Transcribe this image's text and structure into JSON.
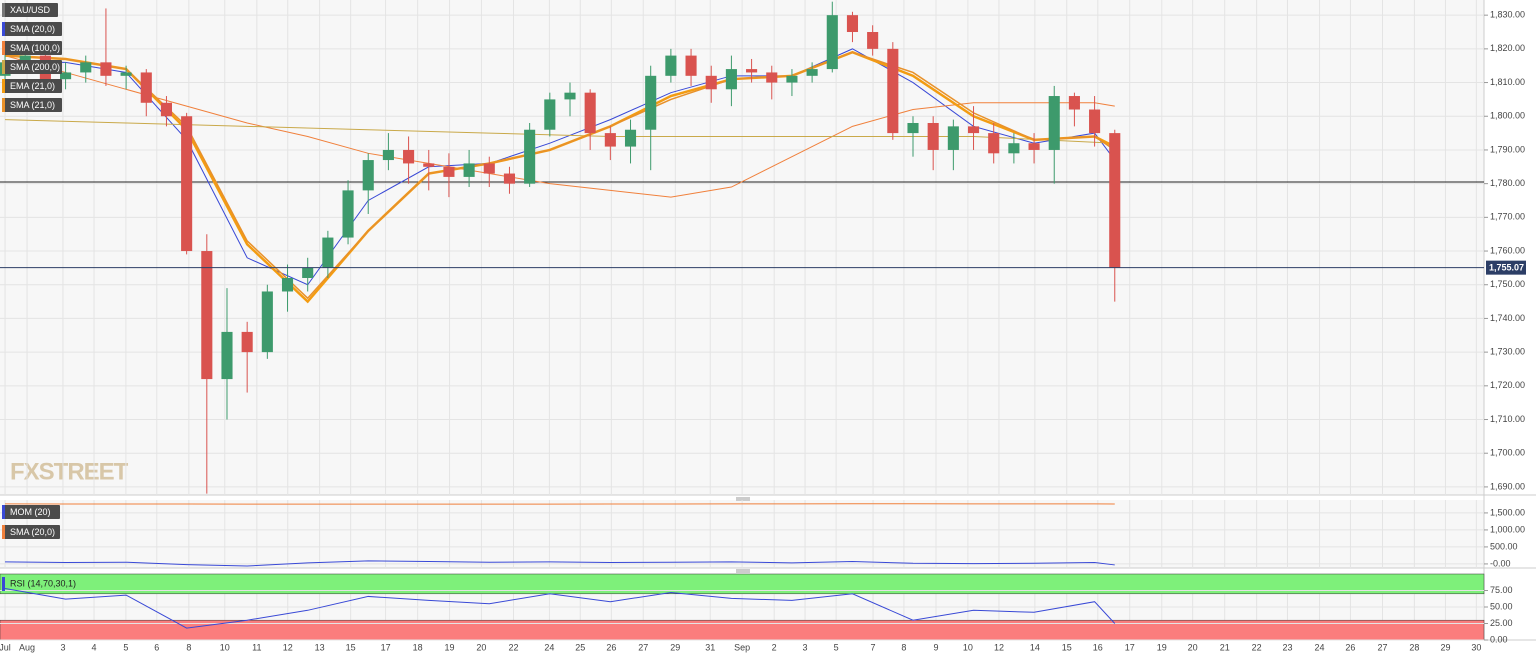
{
  "chart_data": [
    {
      "type": "candlestick",
      "name": "XAU/USD",
      "color": "#777777",
      "up_color": "#3d9a6c",
      "down_color": "#d9534f",
      "watermark": "FXSTREET",
      "ohlc": [
        [
          1812,
          1819,
          1810,
          1816
        ],
        [
          1816,
          1821,
          1813,
          1818
        ],
        [
          1818,
          1819,
          1808,
          1811
        ],
        [
          1811,
          1816,
          1808,
          1813
        ],
        [
          1813,
          1818,
          1810,
          1816
        ],
        [
          1816,
          1832,
          1809,
          1812
        ],
        [
          1812,
          1815,
          1808,
          1813
        ],
        [
          1813,
          1814,
          1800,
          1804
        ],
        [
          1804,
          1806,
          1797,
          1800
        ],
        [
          1800,
          1801,
          1759,
          1760
        ],
        [
          1760,
          1765,
          1688,
          1722
        ],
        [
          1722,
          1749,
          1710,
          1736
        ],
        [
          1736,
          1739,
          1718,
          1730
        ],
        [
          1730,
          1750,
          1728,
          1748
        ],
        [
          1748,
          1756,
          1742,
          1752
        ],
        [
          1752,
          1758,
          1748,
          1755
        ],
        [
          1755,
          1766,
          1752,
          1764
        ],
        [
          1764,
          1781,
          1762,
          1778
        ],
        [
          1778,
          1789,
          1771,
          1787
        ],
        [
          1787,
          1795,
          1784,
          1790
        ],
        [
          1790,
          1794,
          1780,
          1786
        ],
        [
          1786,
          1790,
          1778,
          1785
        ],
        [
          1785,
          1789,
          1776,
          1782
        ],
        [
          1782,
          1790,
          1779,
          1786
        ],
        [
          1786,
          1788,
          1779,
          1783
        ],
        [
          1783,
          1785,
          1777,
          1780
        ],
        [
          1780,
          1798,
          1779,
          1796
        ],
        [
          1796,
          1807,
          1794,
          1805
        ],
        [
          1805,
          1810,
          1800,
          1807
        ],
        [
          1807,
          1808,
          1790,
          1795
        ],
        [
          1795,
          1797,
          1787,
          1791
        ],
        [
          1791,
          1799,
          1786,
          1796
        ],
        [
          1796,
          1815,
          1784,
          1812
        ],
        [
          1812,
          1820,
          1810,
          1818
        ],
        [
          1818,
          1820,
          1809,
          1812
        ],
        [
          1812,
          1815,
          1804,
          1808
        ],
        [
          1808,
          1818,
          1803,
          1814
        ],
        [
          1814,
          1817,
          1810,
          1813
        ],
        [
          1813,
          1815,
          1805,
          1810
        ],
        [
          1810,
          1814,
          1806,
          1812
        ],
        [
          1812,
          1816,
          1810,
          1814
        ],
        [
          1814,
          1834,
          1813,
          1830
        ],
        [
          1830,
          1831,
          1822,
          1825
        ],
        [
          1825,
          1827,
          1818,
          1820
        ],
        [
          1820,
          1822,
          1793,
          1795
        ],
        [
          1795,
          1800,
          1788,
          1798
        ],
        [
          1798,
          1800,
          1784,
          1790
        ],
        [
          1790,
          1799,
          1784,
          1797
        ],
        [
          1797,
          1803,
          1790,
          1795
        ],
        [
          1795,
          1798,
          1786,
          1789
        ],
        [
          1789,
          1795,
          1786,
          1792
        ],
        [
          1792,
          1795,
          1786,
          1790
        ],
        [
          1790,
          1809,
          1780,
          1806
        ],
        [
          1806,
          1807,
          1797,
          1802
        ],
        [
          1802,
          1806,
          1791,
          1795
        ],
        [
          1795,
          1796,
          1745,
          1755
        ]
      ],
      "series": [
        {
          "name": "SMA (20,0)",
          "color": "#3949d6",
          "width": 1,
          "x": [
            0,
            3,
            6,
            9,
            12,
            15,
            18,
            21,
            24,
            27,
            30,
            33,
            36,
            39,
            42,
            45,
            48,
            51,
            54,
            55
          ],
          "values": [
            1816,
            1816,
            1813,
            1793,
            1758,
            1750,
            1775,
            1785,
            1786,
            1792,
            1799,
            1807,
            1812,
            1812,
            1820,
            1810,
            1797,
            1792,
            1795,
            1787
          ]
        },
        {
          "name": "SMA (100,0)",
          "color": "#f0803c",
          "width": 1,
          "x": [
            0,
            3,
            6,
            9,
            12,
            15,
            18,
            21,
            24,
            27,
            30,
            33,
            36,
            39,
            42,
            45,
            48,
            51,
            54,
            55
          ],
          "values": [
            1818,
            1813,
            1808,
            1803,
            1798,
            1794,
            1789,
            1786,
            1783,
            1780,
            1778,
            1776,
            1779,
            1788,
            1797,
            1802,
            1804,
            1804,
            1804,
            1803
          ]
        },
        {
          "name": "SMA (200,0)",
          "color": "#c9a94a",
          "width": 1,
          "x": [
            0,
            6,
            12,
            18,
            24,
            30,
            36,
            42,
            48,
            55
          ],
          "values": [
            1799,
            1798,
            1797,
            1796,
            1795,
            1794,
            1794,
            1794,
            1794,
            1792
          ]
        },
        {
          "name": "EMA (21,0)",
          "color": "#f39c12",
          "width": 2.5,
          "x": [
            0,
            3,
            6,
            9,
            12,
            15,
            18,
            21,
            24,
            27,
            30,
            33,
            36,
            39,
            42,
            45,
            48,
            51,
            54,
            55
          ],
          "values": [
            1818,
            1817,
            1814,
            1796,
            1762,
            1745,
            1766,
            1783,
            1786,
            1790,
            1797,
            1806,
            1811,
            1812,
            1819,
            1812,
            1800,
            1793,
            1794,
            1791
          ]
        },
        {
          "name": "SMA (21,0)",
          "color": "#e8912a",
          "width": 1.5,
          "x": [
            0,
            3,
            6,
            9,
            12,
            15,
            18,
            21,
            24,
            27,
            30,
            33,
            36,
            39,
            42,
            45,
            48,
            51,
            54,
            55
          ],
          "values": [
            1818,
            1817,
            1814,
            1797,
            1763,
            1746,
            1766,
            1783,
            1786,
            1790,
            1797,
            1805,
            1811,
            1812,
            1819,
            1813,
            1801,
            1793,
            1794,
            1790
          ]
        }
      ],
      "xlim": [
        -0.25,
        73.3
      ],
      "xticks": [
        {
          "value": 0,
          "label": "Jul"
        },
        {
          "value": 1.09,
          "label": "Aug"
        },
        {
          "value": 2.87,
          "label": "3"
        },
        {
          "value": 4.41,
          "label": "4"
        },
        {
          "value": 5.99,
          "label": "5"
        },
        {
          "value": 7.52,
          "label": "6"
        },
        {
          "value": 9.11,
          "label": "8"
        },
        {
          "value": 10.89,
          "label": "10"
        },
        {
          "value": 12.48,
          "label": "11"
        },
        {
          "value": 14.01,
          "label": "12"
        },
        {
          "value": 15.59,
          "label": "13"
        },
        {
          "value": 17.13,
          "label": "15"
        },
        {
          "value": 18.86,
          "label": "17"
        },
        {
          "value": 20.45,
          "label": "18"
        },
        {
          "value": 22.03,
          "label": "19"
        },
        {
          "value": 23.61,
          "label": "20"
        },
        {
          "value": 25.2,
          "label": "22"
        },
        {
          "value": 26.98,
          "label": "24"
        },
        {
          "value": 28.51,
          "label": "25"
        },
        {
          "value": 30.05,
          "label": "26"
        },
        {
          "value": 31.63,
          "label": "27"
        },
        {
          "value": 33.22,
          "label": "29"
        },
        {
          "value": 34.95,
          "label": "31"
        },
        {
          "value": 36.53,
          "label": "Sep"
        },
        {
          "value": 38.12,
          "label": "2"
        },
        {
          "value": 39.65,
          "label": "3"
        },
        {
          "value": 41.19,
          "label": "5"
        },
        {
          "value": 43.02,
          "label": "7"
        },
        {
          "value": 44.55,
          "label": "8"
        },
        {
          "value": 46.14,
          "label": "9"
        },
        {
          "value": 47.72,
          "label": "10"
        },
        {
          "value": 49.26,
          "label": "12"
        },
        {
          "value": 51.04,
          "label": "14"
        },
        {
          "value": 52.62,
          "label": "15"
        },
        {
          "value": 54.16,
          "label": "16"
        },
        {
          "value": 55.74,
          "label": "17"
        },
        {
          "value": 57.33,
          "label": "19"
        },
        {
          "value": 58.86,
          "label": "20"
        },
        {
          "value": 60.45,
          "label": "21"
        },
        {
          "value": 62.03,
          "label": "22"
        },
        {
          "value": 63.56,
          "label": "23"
        },
        {
          "value": 65.15,
          "label": "24"
        },
        {
          "value": 66.68,
          "label": "26"
        },
        {
          "value": 68.27,
          "label": "27"
        },
        {
          "value": 69.85,
          "label": "28"
        },
        {
          "value": 71.39,
          "label": "29"
        },
        {
          "value": 72.92,
          "label": "30"
        }
      ],
      "ylim": [
        1687.6,
        1834.5
      ],
      "yticks": [
        {
          "value": 1690,
          "label": "1,690.00"
        },
        {
          "value": 1700,
          "label": "1,700.00"
        },
        {
          "value": 1710,
          "label": "1,710.00"
        },
        {
          "value": 1720,
          "label": "1,720.00"
        },
        {
          "value": 1730,
          "label": "1,730.00"
        },
        {
          "value": 1740,
          "label": "1,740.00"
        },
        {
          "value": 1750,
          "label": "1,750.00"
        },
        {
          "value": 1760,
          "label": "1,760.00"
        },
        {
          "value": 1770,
          "label": "1,770.00"
        },
        {
          "value": 1780,
          "label": "1,780.00"
        },
        {
          "value": 1790,
          "label": "1,790.00"
        },
        {
          "value": 1800,
          "label": "1,800.00"
        },
        {
          "value": 1810,
          "label": "1,810.00"
        },
        {
          "value": 1820,
          "label": "1,820.00"
        },
        {
          "value": 1830,
          "label": "1,830.00"
        }
      ],
      "hlines": [
        1780.5
      ],
      "last_price": {
        "value": 1755.07,
        "label": "1,755.07"
      },
      "grid": true
    },
    {
      "type": "line",
      "series": [
        {
          "name": "MOM (20)",
          "color": "#3949d6",
          "x": [
            0,
            3,
            6,
            9,
            12,
            15,
            18,
            21,
            24,
            27,
            30,
            33,
            36,
            39,
            42,
            45,
            48,
            51,
            54,
            55
          ],
          "values": [
            60,
            40,
            50,
            -20,
            -60,
            30,
            90,
            70,
            50,
            60,
            40,
            50,
            60,
            30,
            70,
            20,
            10,
            20,
            40,
            -30
          ]
        },
        {
          "name": "SMA (20,0)",
          "color": "#f0803c",
          "x": [
            0,
            3,
            6,
            9,
            12,
            15,
            18,
            21,
            24,
            27,
            30,
            33,
            36,
            39,
            42,
            45,
            48,
            51,
            54,
            55
          ],
          "values": [
            1765,
            1764,
            1763,
            1762,
            1760,
            1758,
            1757,
            1757,
            1758,
            1760,
            1761,
            1763,
            1765,
            1766,
            1768,
            1768,
            1767,
            1766,
            1765,
            1764
          ]
        }
      ],
      "ylim": [
        -120,
        1880
      ],
      "yticks": [
        {
          "value": 0,
          "label": "-0.00"
        },
        {
          "value": 500,
          "label": "500.00"
        },
        {
          "value": 1000,
          "label": "1,000.00"
        },
        {
          "value": 1500,
          "label": "1,500.00"
        }
      ],
      "grid": true
    },
    {
      "type": "line",
      "series": [
        {
          "name": "RSI (14,70,30,1)",
          "color": "#3949d6",
          "x": [
            0,
            3,
            6,
            9,
            12,
            15,
            18,
            21,
            24,
            27,
            30,
            33,
            36,
            39,
            42,
            45,
            48,
            51,
            54,
            55
          ],
          "values": [
            78,
            62,
            68,
            18,
            30,
            45,
            66,
            60,
            55,
            70,
            58,
            72,
            63,
            60,
            70,
            30,
            45,
            42,
            58,
            25
          ]
        }
      ],
      "overbought": 70,
      "oversold": 30,
      "overbought_color": "#7ef07a",
      "oversold_color": "#fb7d7d",
      "ylim": [
        0,
        100
      ],
      "yticks": [
        {
          "value": 0,
          "label": "0.00"
        },
        {
          "value": 25,
          "label": "25.00"
        },
        {
          "value": 50,
          "label": "50.00"
        },
        {
          "value": 75,
          "label": "75.00"
        }
      ],
      "grid": true
    }
  ]
}
